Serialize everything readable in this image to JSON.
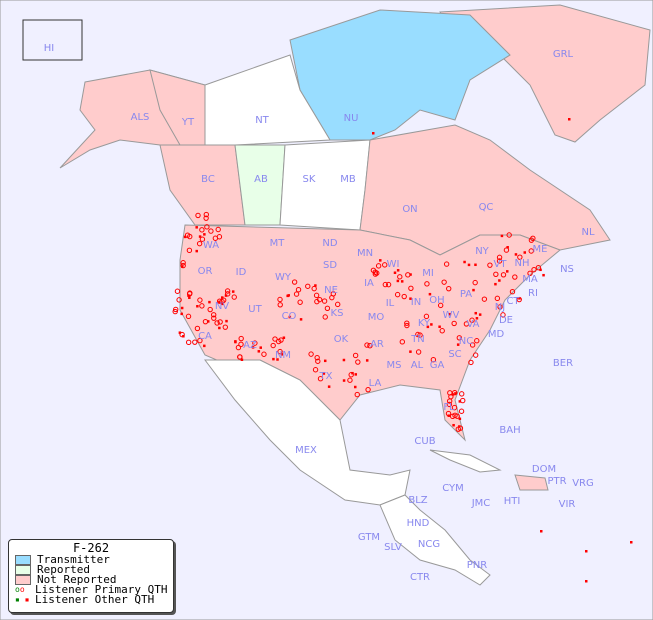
{
  "map": {
    "background": "#f0f0ff",
    "colors": {
      "transmitter": "#99ddff",
      "reported": "#e8ffe8",
      "not_reported": "#ffcccc",
      "unlisted": "#ffffff",
      "listener": "#ff0000"
    },
    "labels": [
      "HI",
      "ALS",
      "YT",
      "NT",
      "NU",
      "GRL",
      "BC",
      "AB",
      "SK",
      "MB",
      "ON",
      "QC",
      "NL",
      "NS",
      "WA",
      "OR",
      "ID",
      "MT",
      "WY",
      "ND",
      "SD",
      "NE",
      "MN",
      "WI",
      "IA",
      "MI",
      "NY",
      "VT",
      "NH",
      "ME",
      "MA",
      "CT",
      "RI",
      "PA",
      "NJ",
      "DE",
      "MD",
      "OH",
      "IN",
      "IL",
      "WV",
      "VA",
      "KY",
      "TN",
      "NC",
      "SC",
      "GA",
      "AL",
      "MS",
      "AR",
      "LA",
      "MO",
      "KS",
      "OK",
      "TX",
      "CO",
      "UT",
      "NV",
      "CA",
      "AZ",
      "NM",
      "FL",
      "BER",
      "BAH",
      "CUB",
      "MEX",
      "DOM",
      "PTR",
      "VRG",
      "VIR",
      "CYM",
      "JMC",
      "HTI",
      "BLZ",
      "HND",
      "GTM",
      "SLV",
      "NCG",
      "CTR",
      "PNR"
    ]
  },
  "legend": {
    "title": "F-262",
    "items": [
      {
        "label": "Transmitter",
        "icon": "swatch-blue"
      },
      {
        "label": "Reported",
        "icon": "swatch-green"
      },
      {
        "label": "Not Reported",
        "icon": "swatch-pink"
      },
      {
        "label": "Listener Primary QTH",
        "icon": "circle-markers"
      },
      {
        "label": "Listener Other QTH",
        "icon": "square-markers"
      }
    ]
  }
}
